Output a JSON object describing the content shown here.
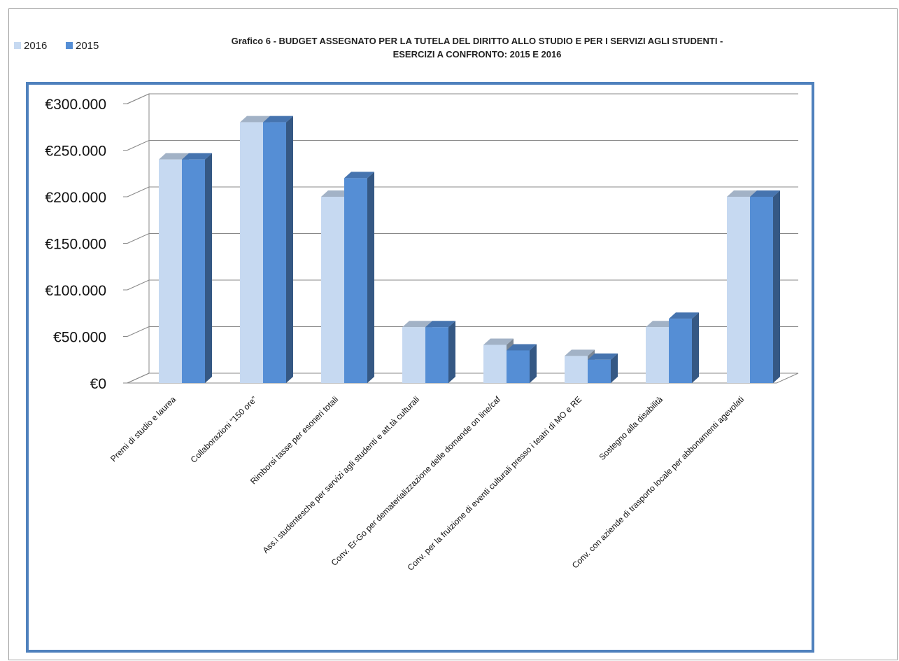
{
  "chart_data": {
    "type": "bar",
    "title_lines": [
      "Grafico 6 - BUDGET ASSEGNATO PER LA TUTELA DEL DIRITTO ALLO STUDIO E PER I SERVIZI AGLI STUDENTI -",
      "ESERCIZI A CONFRONTO: 2015 E 2016"
    ],
    "categories": [
      "Premi di studio e laurea",
      "Collaborazioni “150 ore”",
      "Rimborsi tasse per esoneri totali",
      "Ass.i studentesche per servizi agli studenti e att.tà culturali",
      "Conv. Er-Go per dematerializzazione delle domande on line/caf",
      "Conv. per la fruizione di eventi culturali presso i teatri di MO e RE",
      "Sostegno alla disabilità",
      "Conv. con aziende di trasporto locale per abbonamenti agevolati"
    ],
    "series": [
      {
        "name": "2016",
        "color": "#c6d9f1",
        "values": [
          240000,
          280000,
          200000,
          60000,
          41000,
          29000,
          60000,
          200000
        ]
      },
      {
        "name": "2015",
        "color": "#558ed5",
        "values": [
          240000,
          280000,
          220000,
          60000,
          35000,
          25000,
          69000,
          200000
        ]
      }
    ],
    "y_ticks": [
      0,
      50000,
      100000,
      150000,
      200000,
      250000,
      300000
    ],
    "y_tick_labels": [
      "€0",
      "€50.000",
      "€100.000",
      "€150.000",
      "€200.000",
      "€250.000",
      "€300.000"
    ],
    "ylim": [
      0,
      300000
    ],
    "grid": true,
    "legend_position": "top-left",
    "plot_border_color": "#4f81bd"
  }
}
